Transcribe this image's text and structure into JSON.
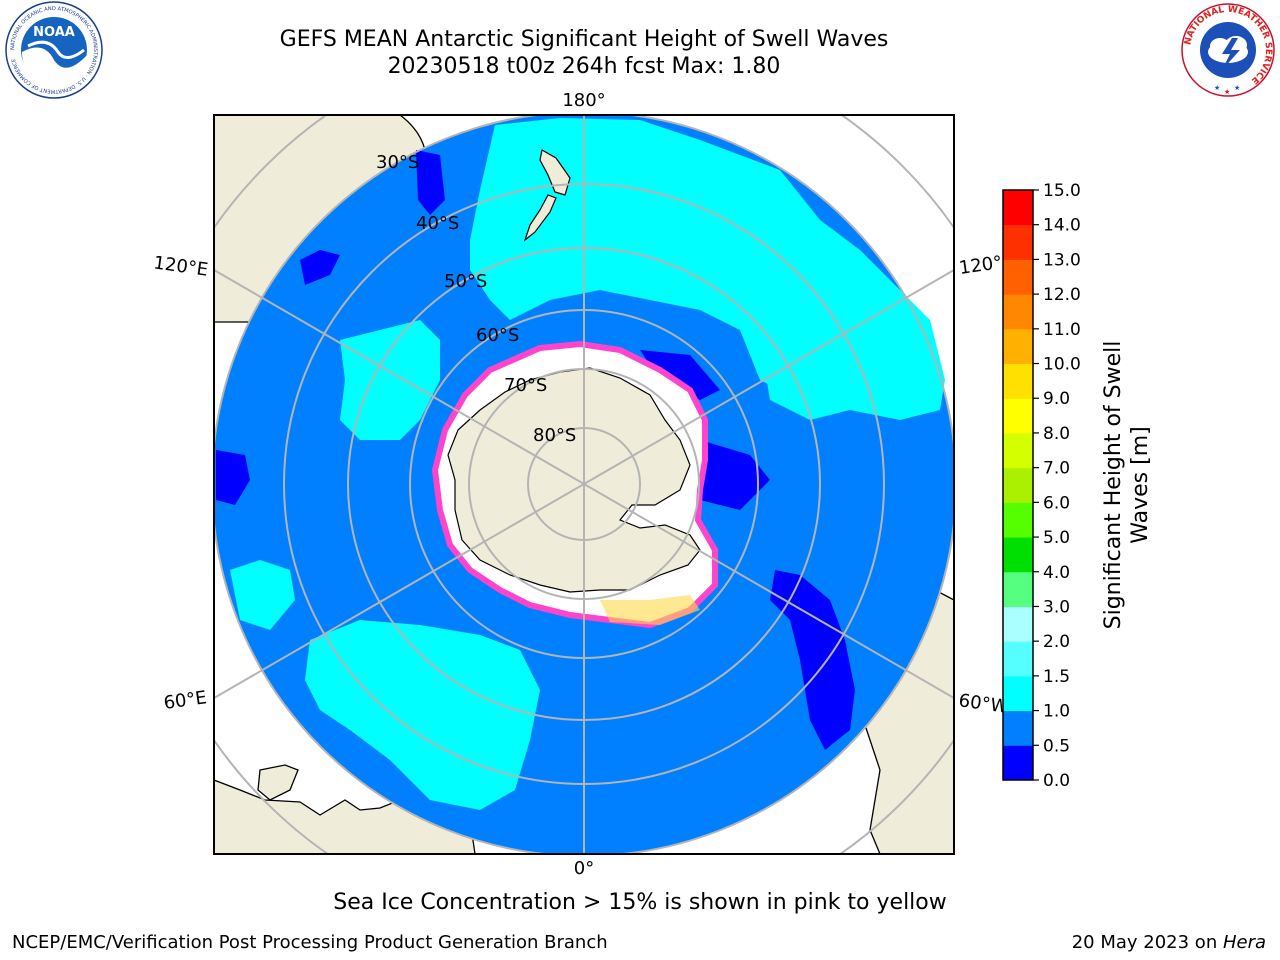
{
  "title": {
    "line1": "GEFS MEAN Antarctic Significant Height of Swell Waves",
    "line2": "20230518 t00z 264h fcst   Max: 1.80"
  },
  "map": {
    "projection": "south-polar-stereographic",
    "lon_labels": {
      "top": "180°",
      "upper_left": "120°E",
      "upper_right": "120°",
      "lower_left": "60°E",
      "lower_right": "60°W",
      "bottom": "0°"
    },
    "lat_labels": [
      "30°S",
      "40°S",
      "50°S",
      "60°S",
      "70°S",
      "80°S"
    ],
    "colors": {
      "land": "#efedda",
      "ocean_0_5": "#0000ff",
      "ocean_0_5_1_0": "#0080ff",
      "ocean_1_0_1_5": "#00ffff",
      "ice": "#ffffff",
      "ice_edge": "#ff44cc",
      "grid": "#b4b4b4"
    }
  },
  "colorbar": {
    "label_line1": "Significant Height of Swell",
    "label_line2": "Waves [m]",
    "ticks": [
      "0.0",
      "0.5",
      "1.0",
      "1.5",
      "2.0",
      "3.0",
      "4.0",
      "5.0",
      "6.0",
      "7.0",
      "8.0",
      "9.0",
      "10.0",
      "11.0",
      "12.0",
      "13.0",
      "14.0",
      "15.0"
    ],
    "colors": [
      "#0000ff",
      "#0080ff",
      "#00ffff",
      "#55ffff",
      "#aaffff",
      "#55ff80",
      "#00e000",
      "#55ff00",
      "#aaf000",
      "#d4ff00",
      "#ffff00",
      "#ffe000",
      "#ffb000",
      "#ff8800",
      "#ff6000",
      "#ff3000",
      "#ff0000"
    ]
  },
  "caption": "Sea Ice Concentration > 15% is shown in pink to yellow",
  "footer": {
    "left": "NCEP/EMC/Verification Post Processing Product Generation Branch",
    "right_date": "20 May 2023 on ",
    "right_machine": "Hera"
  },
  "logos": {
    "noaa_text": "NOAA",
    "noaa_ring": "NATIONAL OCEANIC AND ATMOSPHERIC ADMINISTRATION · U.S. DEPARTMENT OF COMMERCE",
    "nws_ring": "NATIONAL WEATHER SERVICE"
  }
}
